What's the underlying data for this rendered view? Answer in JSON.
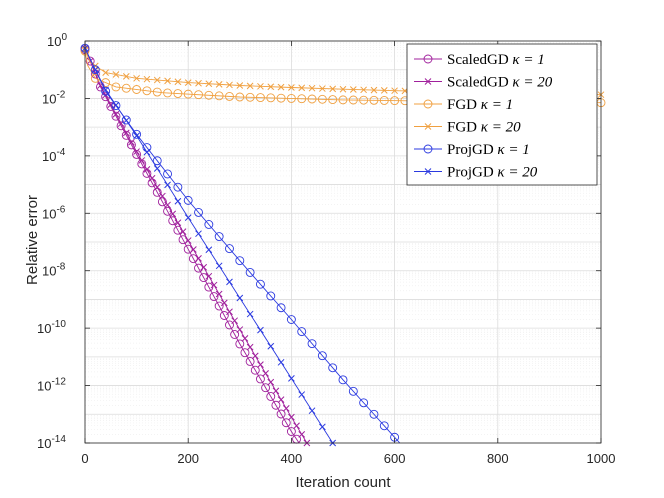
{
  "chart_data": {
    "type": "line",
    "title": "",
    "xlabel": "Iteration count",
    "ylabel": "Relative error",
    "xlim": [
      0,
      1000
    ],
    "ylim_log10": [
      -14,
      0
    ],
    "yscale": "log",
    "grid": true,
    "legend_position": "top-right",
    "x_ticks": [
      "0",
      "200",
      "400",
      "600",
      "800",
      "1000"
    ],
    "y_ticks": [
      {
        "base": "10",
        "exp": "0"
      },
      {
        "base": "10",
        "exp": "-2"
      },
      {
        "base": "10",
        "exp": "-4"
      },
      {
        "base": "10",
        "exp": "-6"
      },
      {
        "base": "10",
        "exp": "-8"
      },
      {
        "base": "10",
        "exp": "-10"
      },
      {
        "base": "10",
        "exp": "-12"
      },
      {
        "base": "10",
        "exp": "-14"
      }
    ],
    "colors": {
      "scaledgd": "#a0209c",
      "fgd": "#f0a040",
      "projgd": "#2b3ae0",
      "axis": "#262626",
      "grid_major": "#dcdcdc",
      "grid_minor": "#efefef"
    },
    "series": [
      {
        "name": "ScaledGD",
        "kappa": "κ = 1",
        "color_key": "scaledgd",
        "marker": "circle",
        "marker_step": 10,
        "points_log10": [
          [
            0,
            -0.3
          ],
          [
            10,
            -0.7
          ],
          [
            30,
            -1.6
          ],
          [
            60,
            -2.62
          ],
          [
            100,
            -3.95
          ],
          [
            200,
            -7.25
          ],
          [
            300,
            -10.55
          ],
          [
            400,
            -13.6
          ],
          [
            415,
            -14
          ]
        ]
      },
      {
        "name": "ScaledGD",
        "kappa": "κ = 20",
        "color_key": "scaledgd",
        "marker": "x",
        "marker_step": 10,
        "points_log10": [
          [
            0,
            -0.3
          ],
          [
            10,
            -0.7
          ],
          [
            30,
            -1.55
          ],
          [
            60,
            -2.55
          ],
          [
            100,
            -3.85
          ],
          [
            200,
            -6.95
          ],
          [
            300,
            -10.05
          ],
          [
            400,
            -13.1
          ],
          [
            430,
            -14
          ]
        ]
      },
      {
        "name": "FGD",
        "kappa": "κ = 1",
        "color_key": "fgd",
        "marker": "circle",
        "marker_step": 20,
        "points_log10": [
          [
            0,
            -0.35
          ],
          [
            5,
            -0.85
          ],
          [
            20,
            -1.3
          ],
          [
            60,
            -1.6
          ],
          [
            150,
            -1.8
          ],
          [
            300,
            -1.95
          ],
          [
            500,
            -2.05
          ],
          [
            700,
            -2.1
          ],
          [
            1000,
            -2.15
          ]
        ]
      },
      {
        "name": "FGD",
        "kappa": "κ = 20",
        "color_key": "fgd",
        "marker": "x",
        "marker_step": 20,
        "points_log10": [
          [
            0,
            -0.3
          ],
          [
            10,
            -0.75
          ],
          [
            40,
            -1.1
          ],
          [
            100,
            -1.3
          ],
          [
            200,
            -1.45
          ],
          [
            300,
            -1.55
          ],
          [
            400,
            -1.62
          ],
          [
            500,
            -1.68
          ],
          [
            600,
            -1.73
          ],
          [
            700,
            -1.77
          ],
          [
            800,
            -1.81
          ],
          [
            900,
            -1.84
          ],
          [
            1000,
            -1.87
          ]
        ]
      },
      {
        "name": "ProjGD",
        "kappa": "κ = 1",
        "color_key": "projgd",
        "marker": "circle",
        "marker_step": 20,
        "points_log10": [
          [
            0,
            -0.25
          ],
          [
            20,
            -1.0
          ],
          [
            40,
            -1.75
          ],
          [
            100,
            -3.25
          ],
          [
            200,
            -5.55
          ],
          [
            300,
            -7.65
          ],
          [
            400,
            -9.7
          ],
          [
            500,
            -11.8
          ],
          [
            600,
            -13.8
          ],
          [
            610,
            -14
          ]
        ]
      },
      {
        "name": "ProjGD",
        "kappa": "κ = 20",
        "color_key": "projgd",
        "marker": "x",
        "marker_step": 20,
        "points_log10": [
          [
            0,
            -0.25
          ],
          [
            20,
            -1.0
          ],
          [
            40,
            -1.7
          ],
          [
            100,
            -3.3
          ],
          [
            200,
            -6.15
          ],
          [
            300,
            -8.95
          ],
          [
            400,
            -11.75
          ],
          [
            480,
            -14
          ]
        ]
      }
    ]
  }
}
